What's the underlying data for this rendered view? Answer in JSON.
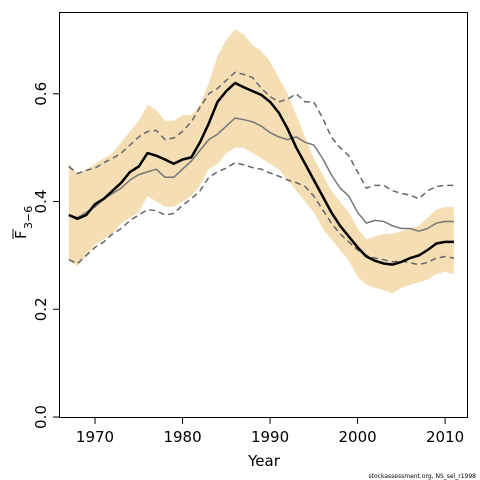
{
  "chart_data": {
    "type": "line",
    "xlabel": "Year",
    "ylabel_main": "F",
    "ylabel_sub": "3−6",
    "xlim": [
      1966,
      2012.5
    ],
    "ylim": [
      0,
      0.75
    ],
    "xticks": [
      1970,
      1980,
      1990,
      2000,
      2010
    ],
    "yticks": [
      0.0,
      0.2,
      0.4,
      0.6
    ],
    "ytick_labels": [
      "0.0",
      "0.2",
      "0.4",
      "0.6"
    ],
    "grid": false,
    "footer": "stockassessment.org, NS_sel_r1998",
    "colors": {
      "band": "#f5deb3",
      "estimate": "#000000",
      "bounds": "#666666",
      "other": "#777777"
    },
    "x": [
      1967,
      1968,
      1969,
      1970,
      1971,
      1972,
      1973,
      1974,
      1975,
      1976,
      1977,
      1978,
      1979,
      1980,
      1981,
      1982,
      1983,
      1984,
      1985,
      1986,
      1987,
      1988,
      1989,
      1990,
      1991,
      1992,
      1993,
      1994,
      1995,
      1996,
      1997,
      1998,
      1999,
      2000,
      2001,
      2002,
      2003,
      2004,
      2005,
      2006,
      2007,
      2008,
      2009,
      2010,
      2011
    ],
    "series": [
      {
        "role": "band",
        "lower": [
          0.29,
          0.28,
          0.3,
          0.32,
          0.33,
          0.34,
          0.36,
          0.37,
          0.38,
          0.41,
          0.4,
          0.39,
          0.39,
          0.4,
          0.41,
          0.43,
          0.46,
          0.47,
          0.49,
          0.5,
          0.5,
          0.49,
          0.48,
          0.47,
          0.46,
          0.44,
          0.42,
          0.4,
          0.38,
          0.35,
          0.33,
          0.31,
          0.29,
          0.26,
          0.245,
          0.24,
          0.235,
          0.23,
          0.24,
          0.245,
          0.25,
          0.255,
          0.265,
          0.27,
          0.265
        ],
        "upper": [
          0.47,
          0.45,
          0.46,
          0.47,
          0.48,
          0.49,
          0.51,
          0.53,
          0.55,
          0.58,
          0.57,
          0.55,
          0.55,
          0.56,
          0.56,
          0.58,
          0.62,
          0.67,
          0.7,
          0.72,
          0.71,
          0.69,
          0.68,
          0.66,
          0.63,
          0.6,
          0.56,
          0.52,
          0.48,
          0.45,
          0.42,
          0.4,
          0.38,
          0.35,
          0.33,
          0.335,
          0.34,
          0.34,
          0.345,
          0.35,
          0.355,
          0.37,
          0.385,
          0.39,
          0.39
        ]
      },
      {
        "role": "estimate",
        "values": [
          0.375,
          0.368,
          0.375,
          0.395,
          0.405,
          0.42,
          0.435,
          0.455,
          0.465,
          0.49,
          0.485,
          0.478,
          0.47,
          0.478,
          0.482,
          0.51,
          0.545,
          0.585,
          0.605,
          0.62,
          0.612,
          0.605,
          0.598,
          0.585,
          0.565,
          0.535,
          0.5,
          0.47,
          0.44,
          0.41,
          0.38,
          0.355,
          0.335,
          0.315,
          0.298,
          0.29,
          0.285,
          0.283,
          0.288,
          0.295,
          0.3,
          0.31,
          0.322,
          0.325,
          0.325
        ]
      },
      {
        "role": "lower-dashed",
        "values": [
          0.292,
          0.285,
          0.3,
          0.315,
          0.325,
          0.34,
          0.35,
          0.365,
          0.375,
          0.385,
          0.383,
          0.375,
          0.378,
          0.393,
          0.405,
          0.42,
          0.445,
          0.455,
          0.462,
          0.472,
          0.468,
          0.463,
          0.46,
          0.453,
          0.447,
          0.44,
          0.435,
          0.428,
          0.41,
          0.385,
          0.36,
          0.34,
          0.325,
          0.31,
          0.3,
          0.295,
          0.292,
          0.288,
          0.29,
          0.286,
          0.283,
          0.287,
          0.295,
          0.298,
          0.295
        ]
      },
      {
        "role": "upper-dashed",
        "values": [
          0.465,
          0.452,
          0.458,
          0.462,
          0.472,
          0.48,
          0.49,
          0.505,
          0.52,
          0.53,
          0.532,
          0.515,
          0.518,
          0.53,
          0.548,
          0.575,
          0.6,
          0.61,
          0.625,
          0.64,
          0.636,
          0.63,
          0.61,
          0.595,
          0.585,
          0.59,
          0.6,
          0.585,
          0.585,
          0.555,
          0.52,
          0.5,
          0.485,
          0.455,
          0.425,
          0.43,
          0.43,
          0.42,
          0.415,
          0.412,
          0.405,
          0.42,
          0.428,
          0.43,
          0.43
        ]
      },
      {
        "role": "other",
        "values": [
          0.375,
          0.37,
          0.38,
          0.39,
          0.405,
          0.415,
          0.425,
          0.44,
          0.45,
          0.455,
          0.46,
          0.445,
          0.445,
          0.46,
          0.475,
          0.495,
          0.515,
          0.525,
          0.54,
          0.555,
          0.552,
          0.548,
          0.54,
          0.528,
          0.52,
          0.515,
          0.52,
          0.51,
          0.505,
          0.48,
          0.45,
          0.425,
          0.41,
          0.38,
          0.36,
          0.365,
          0.363,
          0.355,
          0.35,
          0.35,
          0.345,
          0.35,
          0.36,
          0.363,
          0.363
        ]
      }
    ]
  }
}
